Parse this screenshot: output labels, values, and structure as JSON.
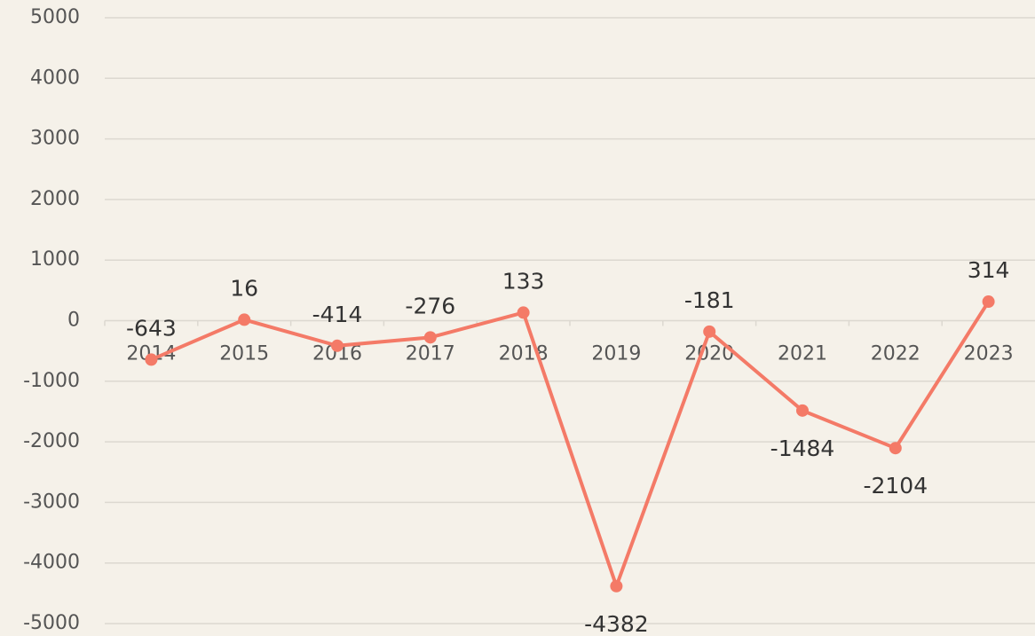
{
  "chart_data": {
    "type": "line",
    "categories": [
      "2014",
      "2015",
      "2016",
      "2017",
      "2018",
      "2019",
      "2020",
      "2021",
      "2022",
      "2023"
    ],
    "series": [
      {
        "color": "#f47a67",
        "values": [
          -643,
          16,
          -414,
          -276,
          133,
          -4382,
          -181,
          -1484,
          -2104,
          314
        ]
      }
    ],
    "ylim": [
      -5000,
      5000
    ],
    "yticks": [
      -5000,
      -4000,
      -3000,
      -2000,
      -1000,
      0,
      1000,
      2000,
      3000,
      4000,
      5000
    ],
    "grid": true
  }
}
